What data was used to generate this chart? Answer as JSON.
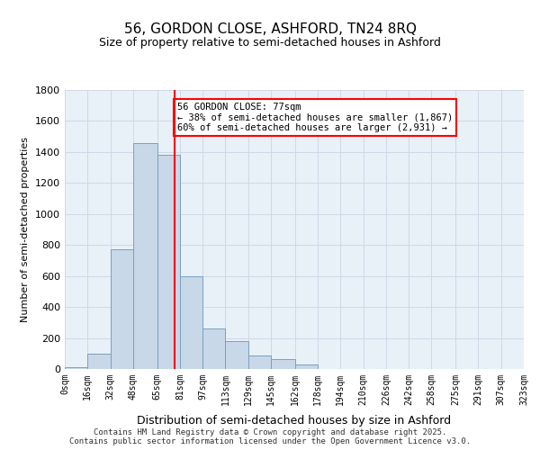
{
  "title_line1": "56, GORDON CLOSE, ASHFORD, TN24 8RQ",
  "title_line2": "Size of property relative to semi-detached houses in Ashford",
  "xlabel": "Distribution of semi-detached houses by size in Ashford",
  "ylabel": "Number of semi-detached properties",
  "bins": [
    0,
    16,
    32,
    48,
    65,
    81,
    97,
    113,
    129,
    145,
    162,
    178,
    194,
    210,
    226,
    242,
    258,
    275,
    291,
    307,
    323
  ],
  "bin_labels": [
    "0sqm",
    "16sqm",
    "32sqm",
    "48sqm",
    "65sqm",
    "81sqm",
    "97sqm",
    "113sqm",
    "129sqm",
    "145sqm",
    "162sqm",
    "178sqm",
    "194sqm",
    "210sqm",
    "226sqm",
    "242sqm",
    "258sqm",
    "275sqm",
    "291sqm",
    "307sqm",
    "323sqm"
  ],
  "bar_heights": [
    10,
    100,
    770,
    1460,
    1380,
    600,
    260,
    180,
    90,
    65,
    30,
    0,
    0,
    0,
    0,
    0,
    0,
    0,
    0,
    0
  ],
  "bar_color": "#c8d8e8",
  "bar_edge_color": "#7aa0c0",
  "vline_x": 77,
  "vline_color": "red",
  "annotation_text": "56 GORDON CLOSE: 77sqm\n← 38% of semi-detached houses are smaller (1,867)\n60% of semi-detached houses are larger (2,931) →",
  "annotation_box_color": "red",
  "ylim": [
    0,
    1800
  ],
  "yticks": [
    0,
    200,
    400,
    600,
    800,
    1000,
    1200,
    1400,
    1600,
    1800
  ],
  "grid_color": "#d0d8e8",
  "background_color": "#e8f0f8",
  "footer_text": "Contains HM Land Registry data © Crown copyright and database right 2025.\nContains public sector information licensed under the Open Government Licence v3.0.",
  "property_size": 77,
  "bin_width": 16
}
